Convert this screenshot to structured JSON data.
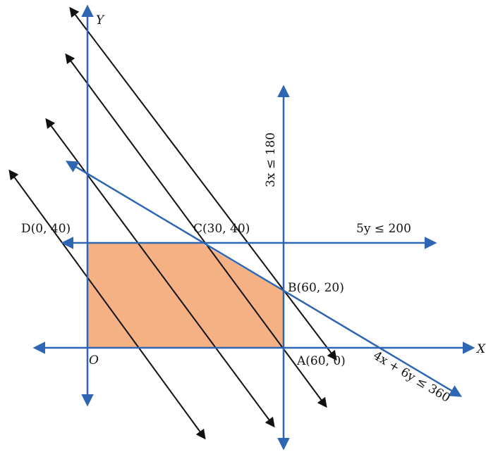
{
  "colors": {
    "axis": "#2f66b3",
    "parallel_lines": "#111111",
    "feasible_region": "#f4b183",
    "background": "#ffffff"
  },
  "labels": {
    "y_axis": "Y",
    "x_axis": "X",
    "origin": "O",
    "point_d": "D(0, 40)",
    "point_c": "C(30,  40)",
    "point_b": "B(60, 20)",
    "point_a": "A(60, 0)",
    "constraint_3x": "3x  ≤ 180",
    "constraint_5y": "5y  ≤ 200",
    "constraint_4x6y": "4x + 6y ≤ 360"
  },
  "chart_data": {
    "type": "line",
    "feasible_region": [
      [
        0,
        0
      ],
      [
        60,
        0
      ],
      [
        60,
        20
      ],
      [
        30,
        40
      ],
      [
        0,
        40
      ]
    ],
    "constraints": [
      {
        "expression": "3x ≤ 180",
        "boundary": "x = 60"
      },
      {
        "expression": "5y ≤ 200",
        "boundary": "y = 40"
      },
      {
        "expression": "4x + 6y ≤ 360",
        "boundary": "4x + 6y = 360"
      }
    ],
    "vertices": [
      {
        "label": "O",
        "x": 0,
        "y": 0
      },
      {
        "label": "A",
        "x": 60,
        "y": 0
      },
      {
        "label": "B",
        "x": 60,
        "y": 20
      },
      {
        "label": "C",
        "x": 30,
        "y": 40
      },
      {
        "label": "D",
        "x": 0,
        "y": 40
      }
    ],
    "iso_lines_count": 4
  }
}
